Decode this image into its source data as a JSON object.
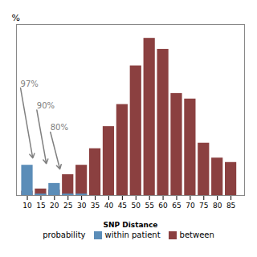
{
  "chart_data": {
    "type": "bar",
    "x": [
      10,
      15,
      20,
      25,
      30,
      35,
      40,
      45,
      50,
      55,
      60,
      65,
      70,
      75,
      80,
      85
    ],
    "series": [
      {
        "name": "within patient",
        "color": "#5B8DB8",
        "values": [
          0.055,
          0.003,
          0.022,
          0.003,
          0.003,
          0.0,
          0.0,
          0.0,
          0.0,
          0.0,
          0.0,
          0.0,
          0.0,
          0.0,
          0.0,
          0.0
        ]
      },
      {
        "name": "between",
        "color": "#8B4040",
        "values": [
          0.008,
          0.012,
          0.01,
          0.038,
          0.055,
          0.085,
          0.125,
          0.165,
          0.235,
          0.285,
          0.265,
          0.185,
          0.175,
          0.095,
          0.068,
          0.06
        ]
      }
    ],
    "xlabel": "SNP Distance",
    "ylabel": "%",
    "xlim": [
      6,
      90
    ],
    "xticks": [
      10,
      15,
      20,
      25,
      30,
      35,
      40,
      45,
      50,
      55,
      60,
      65,
      70,
      75,
      80,
      85
    ],
    "ylim": [
      0,
      0.31
    ],
    "yticks": [],
    "tick_labels": "x",
    "grid": false,
    "legend": "bottom",
    "legend_title": "probability",
    "annotations": [
      {
        "text": "97%",
        "x": 7.5,
        "y": 0.195,
        "arrow_x": 12,
        "arrow_y": 0.068,
        "color": "#808080"
      },
      {
        "text": "90%",
        "x": 13.5,
        "y": 0.155,
        "arrow_x": 17,
        "arrow_y": 0.058,
        "color": "#808080"
      },
      {
        "text": "80%",
        "x": 18.5,
        "y": 0.115,
        "arrow_x": 22,
        "arrow_y": 0.048,
        "color": "#808080"
      }
    ]
  }
}
